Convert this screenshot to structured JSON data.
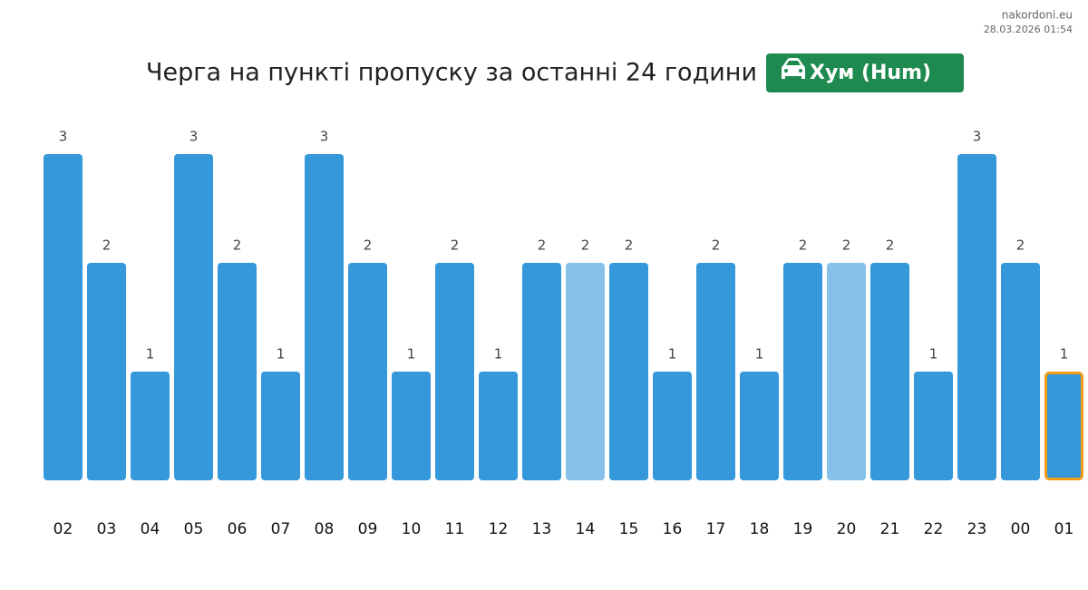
{
  "site": "nakordoni.eu",
  "timestamp": "28.03.2026 01:54",
  "chart_data": {
    "type": "bar",
    "title": "Черга на пункті пропуску за останні 24 години",
    "badge": "Хум (Hum)",
    "categories": [
      "02",
      "03",
      "04",
      "05",
      "06",
      "07",
      "08",
      "09",
      "10",
      "11",
      "12",
      "13",
      "14",
      "15",
      "16",
      "17",
      "18",
      "19",
      "20",
      "21",
      "22",
      "23",
      "00",
      "01"
    ],
    "values": [
      3,
      2,
      1,
      3,
      2,
      1,
      3,
      2,
      1,
      2,
      1,
      2,
      2,
      2,
      1,
      2,
      1,
      2,
      2,
      2,
      1,
      3,
      2,
      1
    ],
    "colors": [
      "#3498db",
      "#3498db",
      "#3498db",
      "#3498db",
      "#3498db",
      "#3498db",
      "#3498db",
      "#3498db",
      "#3498db",
      "#3498db",
      "#3498db",
      "#3498db",
      "#85c1e9",
      "#3498db",
      "#3498db",
      "#3498db",
      "#3498db",
      "#3498db",
      "#85c1e9",
      "#3498db",
      "#3498db",
      "#3498db",
      "#3498db",
      "#3498db"
    ],
    "outlined": 23,
    "outline_color": "#f39c12",
    "ylim": [
      0,
      3
    ]
  }
}
